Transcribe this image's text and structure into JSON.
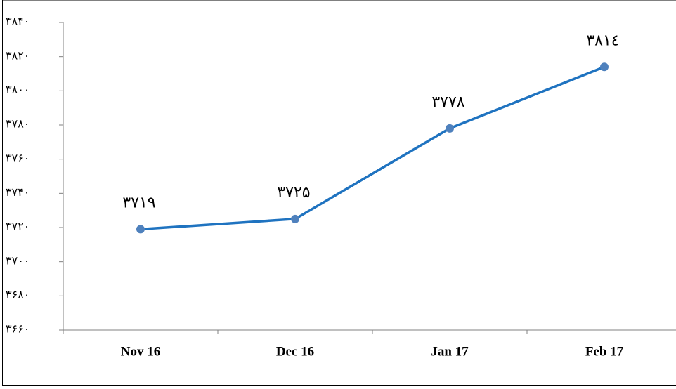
{
  "chart_data": {
    "type": "line",
    "categories": [
      "Nov 16",
      "Dec 16",
      "Jan 17",
      "Feb 17"
    ],
    "series": [
      {
        "color": "#1f73c0",
        "marker_color": "#4f81bd",
        "values": [
          3719,
          3725,
          3778,
          3814
        ],
        "value_labels": [
          "۳۷۱۹",
          "۳۷۲۵",
          "۳۷۷۸",
          "۳۸۱٤"
        ]
      }
    ],
    "ylim": [
      3660,
      3840
    ],
    "yticks": [
      {
        "value": 3660,
        "label": "۳۶۶۰"
      },
      {
        "value": 3680,
        "label": "۳۶۸۰"
      },
      {
        "value": 3700,
        "label": "۳۷۰۰"
      },
      {
        "value": 3720,
        "label": "۳۷۲۰"
      },
      {
        "value": 3740,
        "label": "۳۷۴۰"
      },
      {
        "value": 3760,
        "label": "۳۷۶۰"
      },
      {
        "value": 3780,
        "label": "۳۷۸۰"
      },
      {
        "value": 3800,
        "label": "۳۸۰۰"
      },
      {
        "value": 3820,
        "label": "۳۸۲۰"
      },
      {
        "value": 3840,
        "label": "۳۸۴۰"
      }
    ],
    "grid": false
  }
}
